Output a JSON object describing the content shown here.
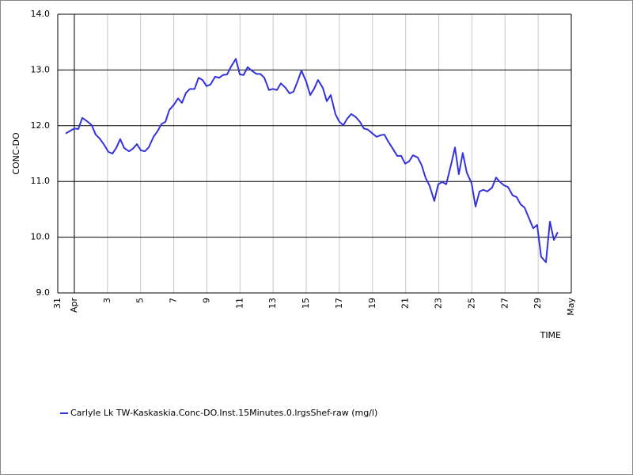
{
  "chart_data": {
    "type": "line",
    "ylabel": "CONC-DO",
    "xlabel": "TIME",
    "xlim": [
      0,
      31
    ],
    "ylim": [
      9,
      14
    ],
    "xticks": [
      {
        "value": 0,
        "label": "31"
      },
      {
        "value": 1,
        "label": "Apr"
      },
      3,
      5,
      7,
      9,
      11,
      13,
      15,
      17,
      19,
      21,
      23,
      25,
      27,
      29,
      {
        "value": 31,
        "label": "May"
      }
    ],
    "yticks": [
      {
        "value": 9,
        "label": "9.0"
      },
      {
        "value": 10,
        "label": "10.0"
      },
      {
        "value": 11,
        "label": "11.0"
      },
      {
        "value": 12,
        "label": "12.0"
      },
      {
        "value": 13,
        "label": "13.0"
      },
      {
        "value": 14,
        "label": "14.0"
      }
    ],
    "grid": true,
    "x": [
      0.48,
      0.76,
      1.0,
      1.24,
      1.48,
      1.77,
      2.05,
      2.29,
      2.53,
      2.77,
      3.06,
      3.3,
      3.53,
      3.77,
      4.01,
      4.3,
      4.54,
      4.78,
      5.01,
      5.25,
      5.49,
      5.78,
      6.02,
      6.26,
      6.5,
      6.73,
      7.02,
      7.26,
      7.5,
      7.74,
      7.98,
      8.26,
      8.5,
      8.74,
      8.98,
      9.22,
      9.5,
      9.74,
      9.98,
      10.22,
      10.46,
      10.75,
      10.99,
      11.22,
      11.46,
      11.75,
      11.99,
      12.23,
      12.47,
      12.75,
      12.99,
      13.23,
      13.47,
      13.75,
      13.99,
      14.23,
      14.47,
      14.71,
      15.0,
      15.24,
      15.47,
      15.71,
      16.0,
      16.24,
      16.48,
      16.76,
      17.0,
      17.24,
      17.48,
      17.72,
      18.01,
      18.24,
      18.48,
      18.72,
      18.96,
      19.25,
      19.49,
      19.72,
      19.96,
      20.2,
      20.49,
      20.73,
      20.97,
      21.21,
      21.44,
      21.73,
      21.97,
      22.21,
      22.45,
      22.73,
      22.97,
      23.21,
      23.45,
      23.74,
      23.98,
      24.21,
      24.45,
      24.69,
      24.98,
      25.22,
      25.46,
      25.69,
      25.93,
      26.22,
      26.46,
      26.7,
      26.94,
      27.18,
      27.46,
      27.7,
      27.94,
      28.18,
      28.42,
      28.7,
      28.94,
      29.18,
      29.47,
      29.71,
      29.95,
      30.18
    ],
    "series": [
      {
        "name": "Carlyle Lk TW-Kaskaskia.Conc-DO.Inst.15Minutes.0.lrgsShef-raw (mg/l)",
        "color": "#3333dd",
        "values": [
          11.86,
          11.91,
          11.95,
          11.94,
          12.14,
          12.08,
          12.01,
          11.84,
          11.77,
          11.67,
          11.53,
          11.5,
          11.6,
          11.76,
          11.6,
          11.54,
          11.59,
          11.67,
          11.56,
          11.54,
          11.61,
          11.8,
          11.9,
          12.03,
          12.07,
          12.28,
          12.38,
          12.49,
          12.41,
          12.59,
          12.66,
          12.66,
          12.86,
          12.82,
          12.71,
          12.74,
          12.88,
          12.86,
          12.91,
          12.92,
          13.06,
          13.2,
          12.92,
          12.91,
          13.05,
          12.98,
          12.93,
          12.93,
          12.86,
          12.64,
          12.66,
          12.64,
          12.76,
          12.68,
          12.58,
          12.61,
          12.79,
          12.99,
          12.79,
          12.55,
          12.66,
          12.82,
          12.68,
          12.44,
          12.55,
          12.21,
          12.07,
          12.01,
          12.13,
          12.21,
          12.15,
          12.07,
          11.95,
          11.93,
          11.87,
          11.8,
          11.83,
          11.84,
          11.71,
          11.6,
          11.46,
          11.46,
          11.32,
          11.36,
          11.47,
          11.43,
          11.29,
          11.06,
          10.92,
          10.65,
          10.95,
          10.99,
          10.95,
          11.3,
          11.61,
          11.13,
          11.51,
          11.16,
          10.97,
          10.55,
          10.82,
          10.85,
          10.82,
          10.89,
          11.07,
          10.99,
          10.93,
          10.9,
          10.75,
          10.72,
          10.59,
          10.53,
          10.36,
          10.16,
          10.22,
          9.65,
          9.55,
          10.28,
          9.95,
          10.09
        ]
      }
    ]
  }
}
